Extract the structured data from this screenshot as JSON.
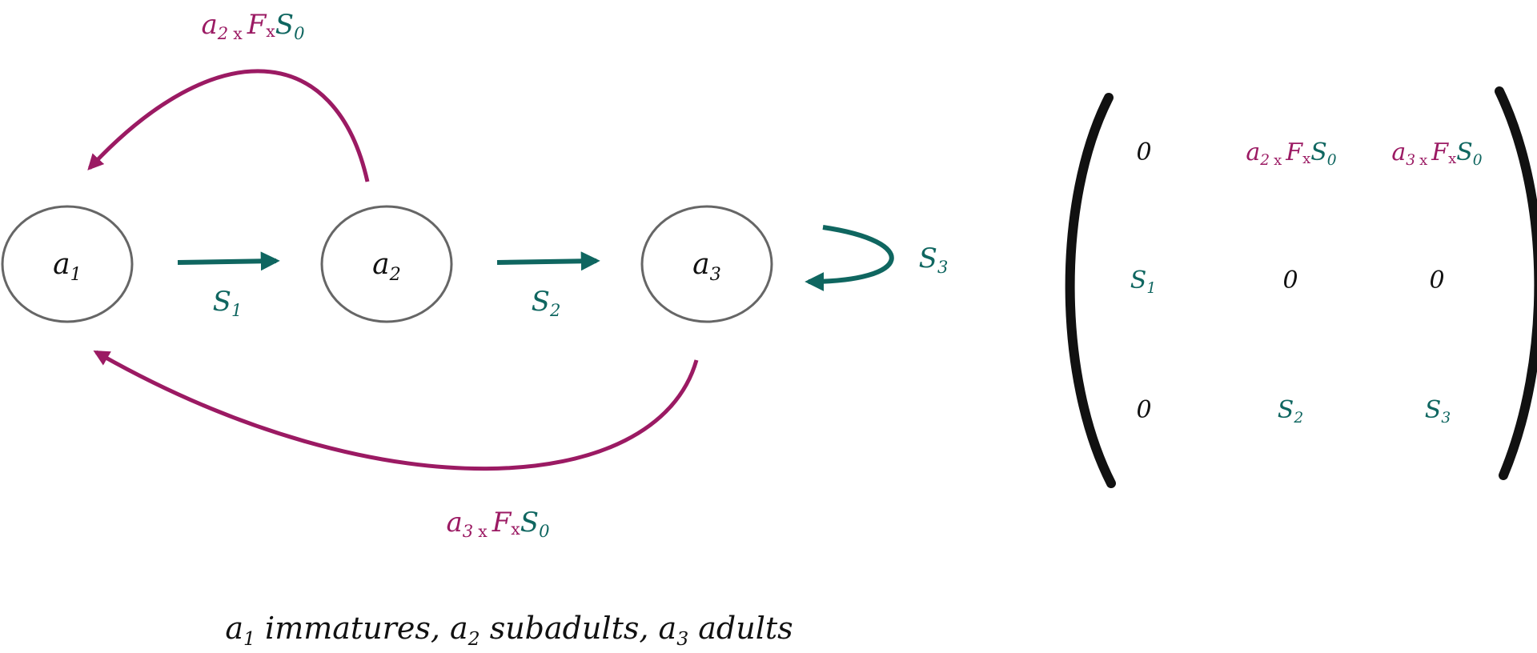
{
  "colors": {
    "fecundity": "#9b1a63",
    "survival": "#0f6660",
    "ink": "#111111",
    "node_outline": "#666666"
  },
  "nodes": [
    {
      "base": "a",
      "sub": "1"
    },
    {
      "base": "a",
      "sub": "2"
    },
    {
      "base": "a",
      "sub": "3"
    }
  ],
  "edges": {
    "s1": {
      "base": "S",
      "sub": "1"
    },
    "s2": {
      "base": "S",
      "sub": "2"
    },
    "s3": {
      "base": "S",
      "sub": "3"
    },
    "f2": {
      "a": "a",
      "a_sub": "2",
      "times1": "x",
      "f": "F",
      "times2": "x",
      "s": "S",
      "s_sub": "0"
    },
    "f3": {
      "a": "a",
      "a_sub": "3",
      "times1": "x",
      "f": "F",
      "times2": "x",
      "s": "S",
      "s_sub": "0"
    }
  },
  "matrix": {
    "r1": {
      "c1": "0",
      "c2": {
        "a": "a",
        "a_sub": "2",
        "times1": "x",
        "f": "F",
        "times2": "x",
        "s": "S",
        "s_sub": "0"
      },
      "c3": {
        "a": "a",
        "a_sub": "3",
        "times1": "x",
        "f": "F",
        "times2": "x",
        "s": "S",
        "s_sub": "0"
      }
    },
    "r2": {
      "c1": {
        "base": "S",
        "sub": "1"
      },
      "c2": "0",
      "c3": "0"
    },
    "r3": {
      "c1": "0",
      "c2": {
        "base": "S",
        "sub": "2"
      },
      "c3": {
        "base": "S",
        "sub": "3"
      }
    }
  },
  "caption": {
    "a": "a",
    "a1_sub": "1",
    "immatures": " immatures, ",
    "a2_sub": "2",
    "subadults": " subadults, ",
    "a3_sub": "3",
    "adults": " adults"
  }
}
